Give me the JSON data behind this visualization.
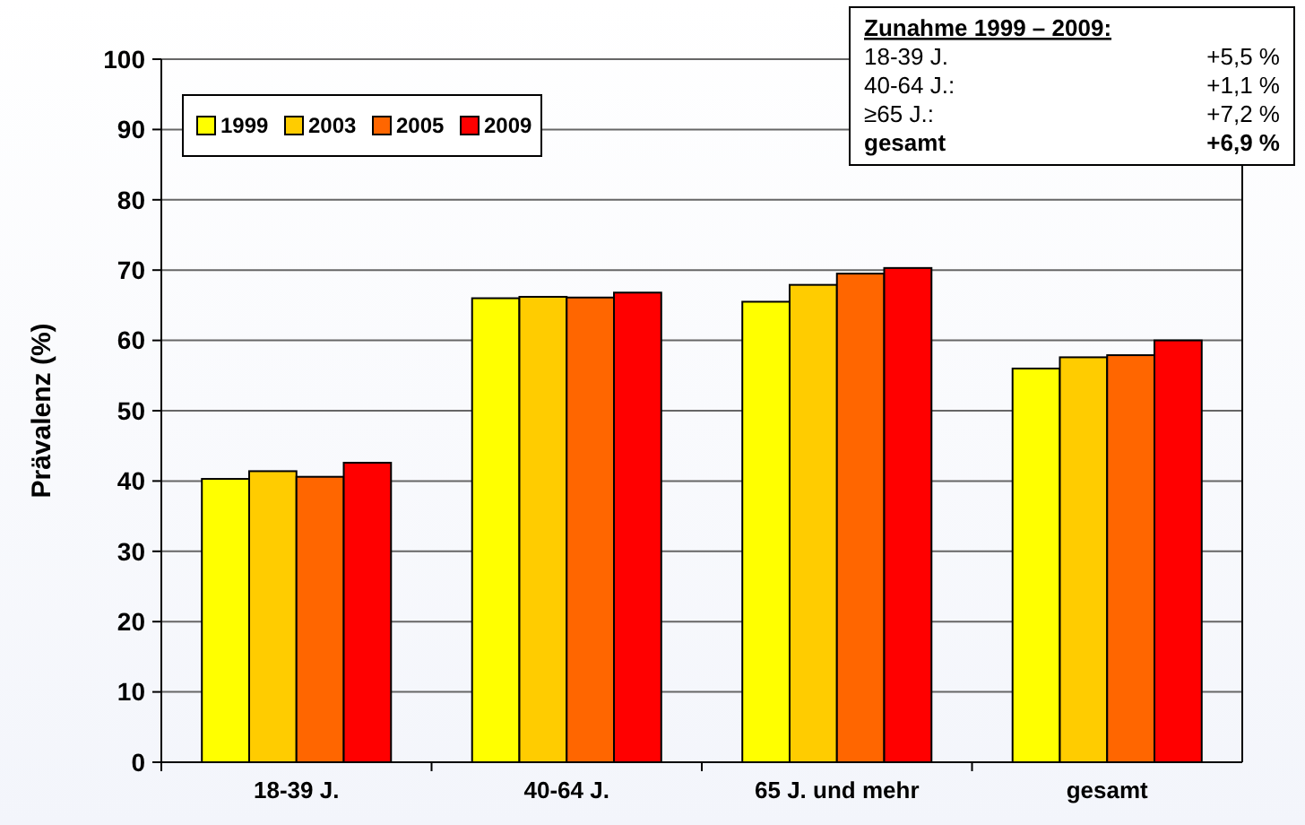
{
  "chart_data": {
    "type": "bar",
    "ylabel": "Prävalenz (%)",
    "categories": [
      "18-39 J.",
      "40-64 J.",
      "65 J. und mehr",
      "gesamt"
    ],
    "series": [
      {
        "name": "1999",
        "color": "#ffff00",
        "values": [
          40.3,
          66.0,
          65.5,
          56.0
        ]
      },
      {
        "name": "2003",
        "color": "#ffcc00",
        "values": [
          41.4,
          66.2,
          67.9,
          57.6
        ]
      },
      {
        "name": "2005",
        "color": "#ff6600",
        "values": [
          40.6,
          66.1,
          69.5,
          57.9
        ]
      },
      {
        "name": "2009",
        "color": "#ff0000",
        "values": [
          42.6,
          66.8,
          70.3,
          60.0
        ]
      }
    ],
    "ylim": [
      0,
      100
    ],
    "yticks": [
      0,
      10,
      20,
      30,
      40,
      50,
      60,
      70,
      80,
      90,
      100
    ],
    "grid": "y",
    "legend": "top left",
    "annotations": [
      "Zunahme 1999 – 2009:",
      "18-39 J.",
      "+5,5 %",
      "40-64 J.:",
      "+1,1 %",
      "≥65 J.:",
      "+7,2 %",
      "gesamt",
      "+6,9 %"
    ]
  }
}
